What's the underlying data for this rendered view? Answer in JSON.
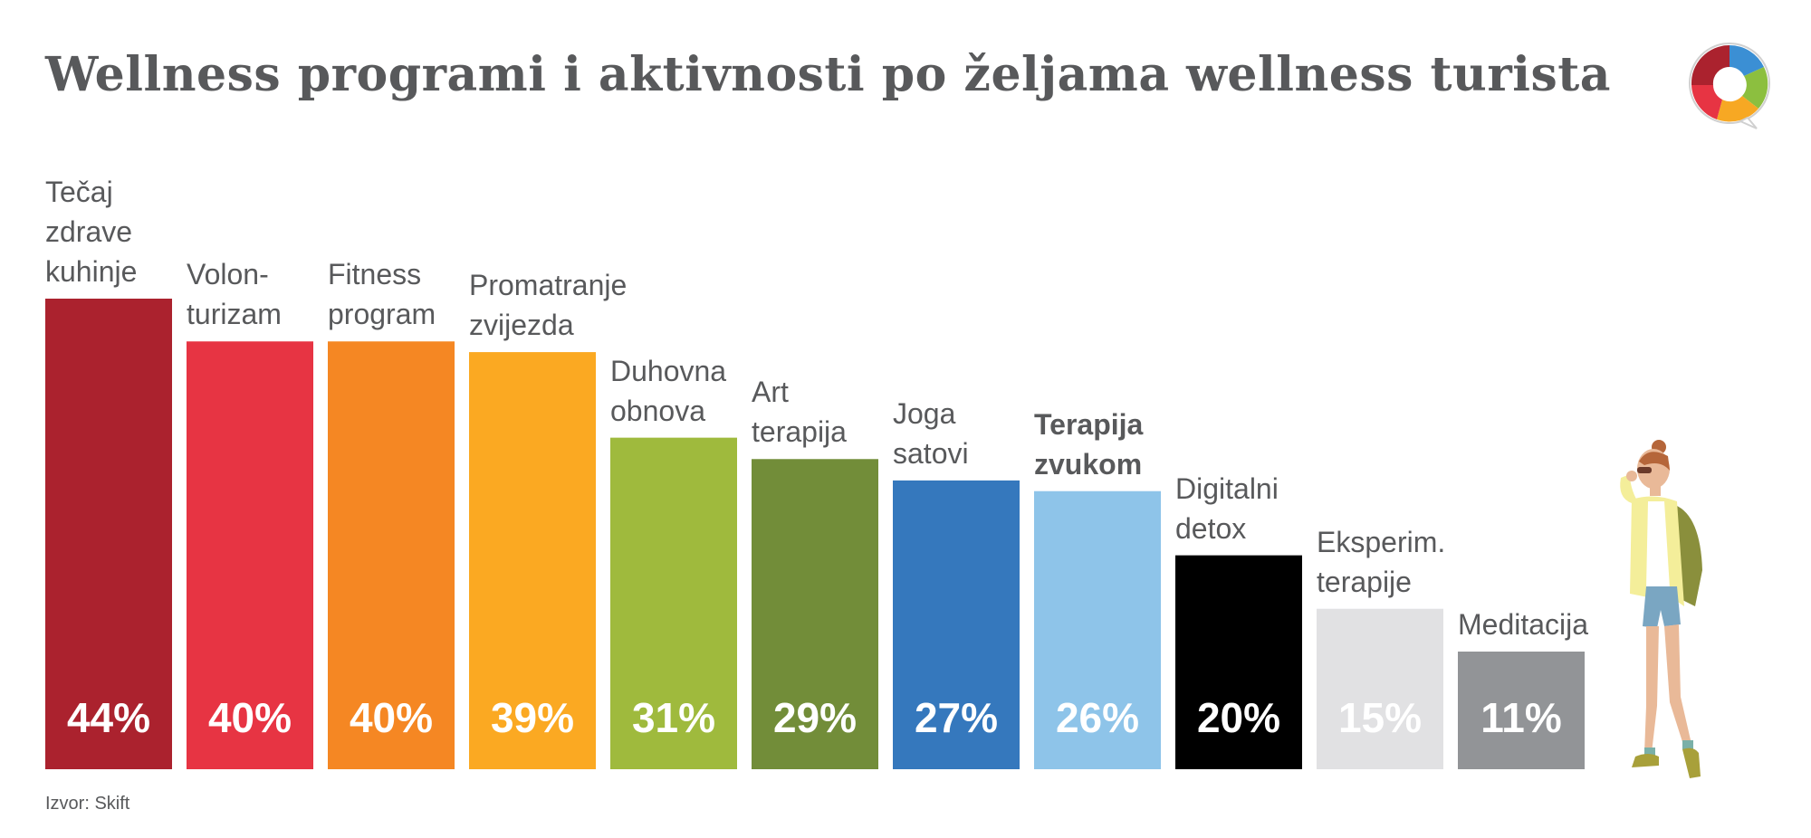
{
  "title": "Wellness programi i aktivnosti po željama wellness turista",
  "source": "Izvor: Skift",
  "logo_icon": "colorful-circle-logo-icon",
  "illustration": "woman-traveler-with-backpack-icon",
  "chart_data": {
    "type": "bar",
    "unit": "%",
    "ylim": [
      0,
      44
    ],
    "categories": [
      "Tečaj\nzdrave\nkuhinje",
      "Volon-\nturizam",
      "Fitness\nprogram",
      "Promatranje\nzvijezda",
      "Duhovna\nobnova",
      "Art\nterapija",
      "Joga\nsatovi",
      "Terapija\nzvukom",
      "Digitalni\ndetox",
      "Eksperim.\nterapije",
      "Meditacija"
    ],
    "values": [
      44,
      40,
      40,
      39,
      31,
      29,
      27,
      26,
      20,
      15,
      11
    ],
    "value_labels": [
      "44%",
      "40%",
      "40%",
      "39%",
      "31%",
      "29%",
      "27%",
      "26%",
      "20%",
      "15%",
      "11%"
    ],
    "colors": [
      "#ab222e",
      "#e73443",
      "#f58723",
      "#fba922",
      "#9fba3d",
      "#728d39",
      "#3578bd",
      "#8ec4e9",
      "#000000",
      "#e1e1e3",
      "#929497"
    ],
    "bold_categories": [
      false,
      false,
      false,
      false,
      false,
      false,
      false,
      true,
      false,
      false,
      false
    ],
    "grid": false,
    "legend": "none"
  }
}
